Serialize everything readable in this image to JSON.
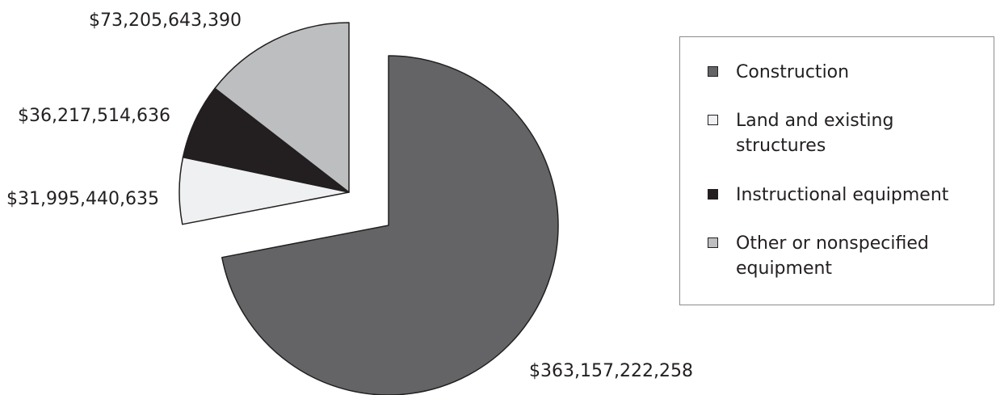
{
  "chart_data": {
    "type": "pie",
    "title": "",
    "exploded": true,
    "legend_position": "right",
    "slices": [
      {
        "name": "Construction",
        "value": 363157222258,
        "label": "$363,157,222,258",
        "color": "#646466"
      },
      {
        "name": "Land and existing structures",
        "value": 31995440635,
        "label": "$31,995,440,635",
        "color": "#eff0f2"
      },
      {
        "name": "Instructional equipment",
        "value": 36217514636,
        "label": "$36,217,514,636",
        "color": "#231f20"
      },
      {
        "name": "Other or nonspecified equipment",
        "value": 73205643390,
        "label": "$73,205,643,390",
        "color": "#bdbec0"
      }
    ]
  },
  "legend": {
    "items": [
      {
        "label": "Construction",
        "color": "#646466"
      },
      {
        "label": "Land and existing structures",
        "color": "#eff0f2"
      },
      {
        "label": "Instructional equipment",
        "color": "#231f20"
      },
      {
        "label": "Other or nonspecified equipment",
        "color": "#bdbec0"
      }
    ]
  }
}
